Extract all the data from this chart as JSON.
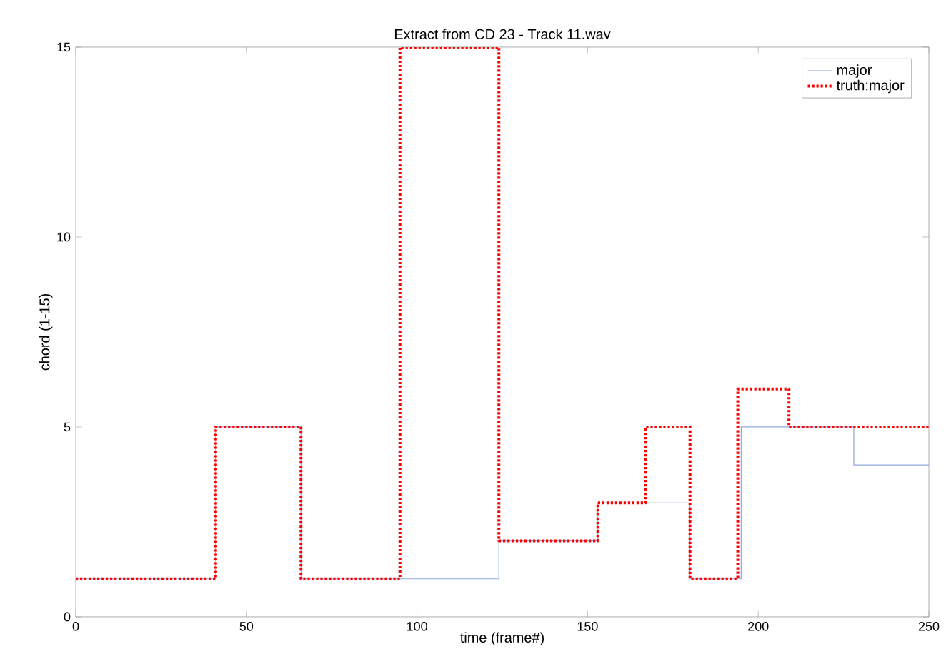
{
  "chart_data": {
    "type": "step",
    "title": "Extract from CD 23 - Track 11.wav",
    "xlabel": "time (frame#)",
    "ylabel": "chord (1-15)",
    "series": [
      {
        "name": "major",
        "color": "#8fa8e0",
        "line_style": "solid",
        "x": [
          0,
          41,
          66,
          124,
          153,
          180,
          195,
          228,
          250
        ],
        "values": [
          1,
          5,
          1,
          2,
          3,
          1,
          5,
          4,
          4
        ]
      },
      {
        "name": "truth:major",
        "color": "#ff0000",
        "line_style": "dotted",
        "x": [
          0,
          41,
          66,
          95,
          124,
          153,
          167,
          180,
          194,
          209,
          250
        ],
        "values": [
          1,
          5,
          1,
          15,
          2,
          3,
          5,
          1,
          6,
          5,
          5
        ]
      }
    ],
    "xlim": [
      0,
      250
    ],
    "ylim": [
      0,
      15
    ],
    "xticks": [
      0,
      50,
      100,
      150,
      200,
      250
    ],
    "yticks": [
      0,
      5,
      10,
      15
    ],
    "grid": false,
    "legend": "top right"
  }
}
